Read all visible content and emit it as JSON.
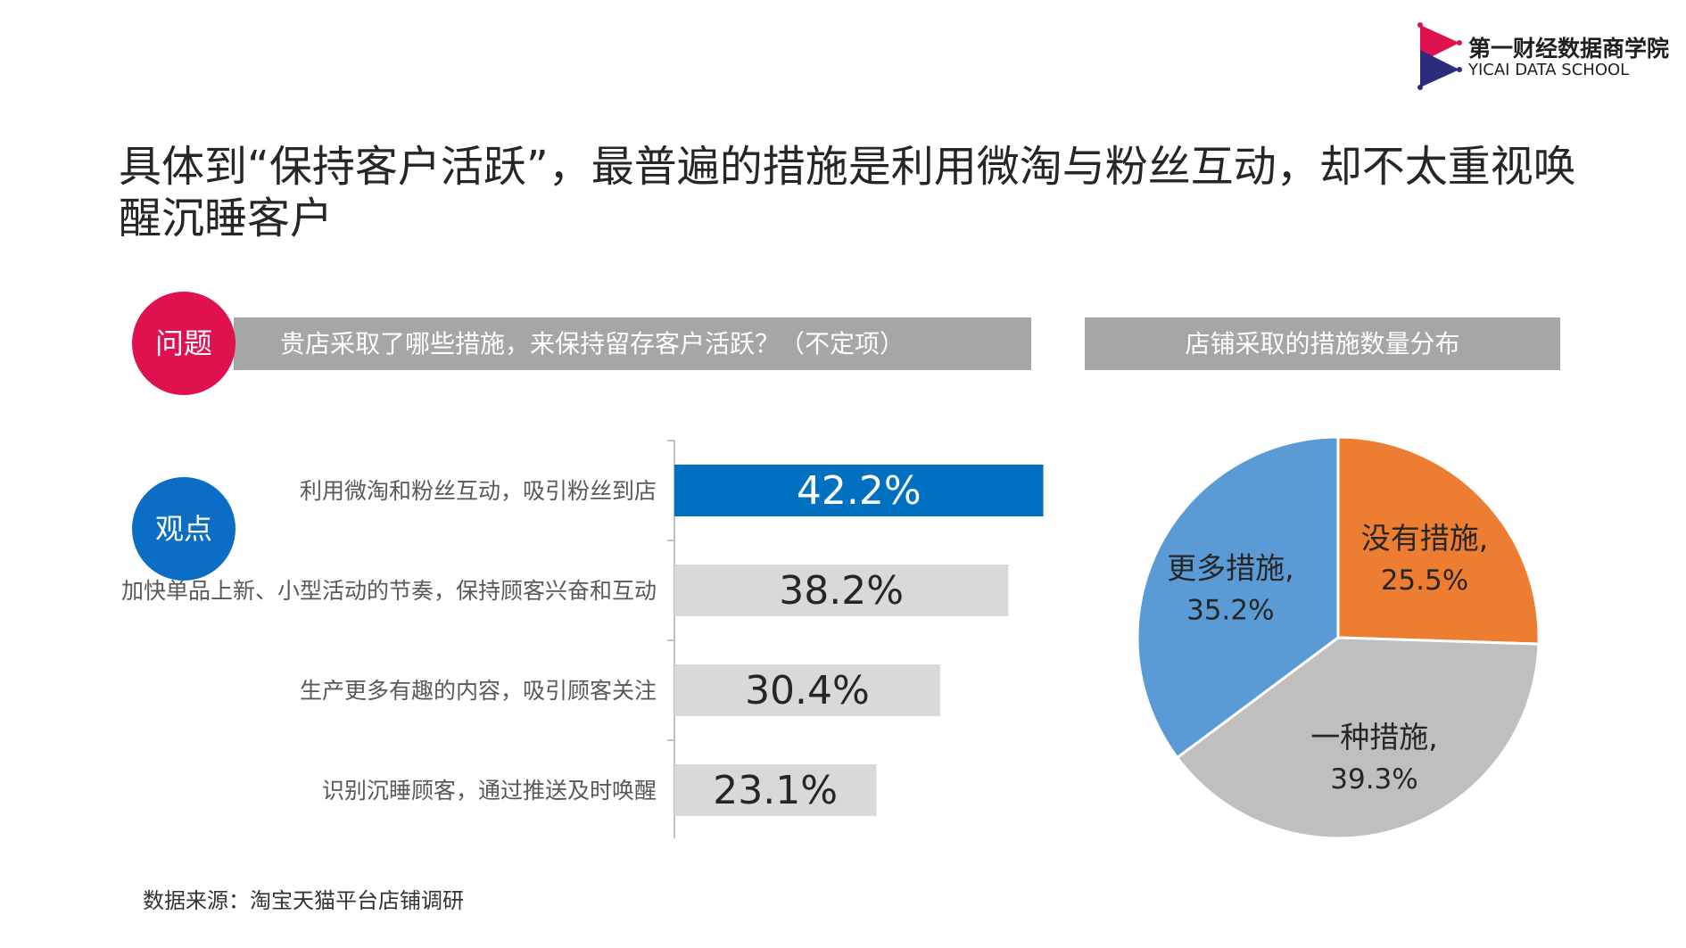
{
  "logo": {
    "name_cn": "第一财经数据商学院",
    "name_en": "YICAI DATA SCHOOL"
  },
  "headline": "具体到“保持客户活跃”，最普遍的措施是利用微淘与粉丝互动，却不太重视唤醒沉睡客户",
  "question": {
    "badge": "问题",
    "text": "贵店采取了哪些措施，来保持留存客户活跃？（不定项）"
  },
  "viewpoint": {
    "badge": "观点"
  },
  "pie_header": "店铺采取的措施数量分布",
  "source": "数据来源：淘宝天猫平台店铺调研",
  "colors": {
    "highlight_bar": "#0070c0",
    "gray_bar": "#d9d9d9",
    "pie_none": "#ed7d31",
    "pie_one": "#bfbfbf",
    "pie_more": "#5b9bd5"
  },
  "chart_data": [
    {
      "type": "bar",
      "orientation": "horizontal",
      "categories": [
        "利用微淘和粉丝互动，吸引粉丝到店",
        "加快单品上新、小型活动的节奏，保持顾客兴奋和互动",
        "生产更多有趣的内容，吸引顾客关注",
        "识别沉睡顾客，通过推送及时唤醒"
      ],
      "values": [
        42.2,
        38.2,
        30.4,
        23.1
      ],
      "data_labels": [
        "42.2%",
        "38.2%",
        "30.4%",
        "23.1%"
      ],
      "highlight_index": 0,
      "unit": "%"
    },
    {
      "type": "pie",
      "title": "店铺采取的措施数量分布",
      "slices": [
        {
          "label": "没有措施,",
          "value": 25.5,
          "display": "25.5%",
          "color_key": "pie_none"
        },
        {
          "label": "一种措施,",
          "value": 39.3,
          "display": "39.3%",
          "color_key": "pie_one"
        },
        {
          "label": "更多措施,",
          "value": 35.2,
          "display": "35.2%",
          "color_key": "pie_more"
        }
      ]
    }
  ]
}
